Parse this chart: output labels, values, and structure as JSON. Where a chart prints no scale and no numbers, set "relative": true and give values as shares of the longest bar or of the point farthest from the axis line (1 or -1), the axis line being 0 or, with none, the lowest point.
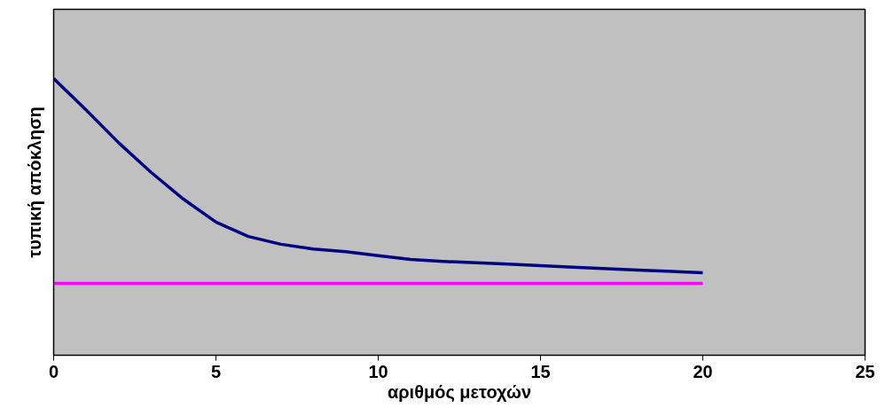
{
  "chart_data": {
    "type": "line",
    "xlabel": "αριθμός μετοχών",
    "ylabel": "τυπική απόκληση",
    "relative": true,
    "xlim": [
      0,
      25
    ],
    "xticks": [
      0,
      5,
      10,
      15,
      20,
      25
    ],
    "grid": false,
    "marker": "none",
    "line_style": "solid",
    "series": [
      {
        "color": "#000080",
        "x": [
          0,
          1,
          2,
          3,
          4,
          5,
          6,
          7,
          8,
          9,
          10,
          11,
          12,
          14,
          16,
          18,
          20
        ],
        "values": [
          1.0,
          0.886,
          0.768,
          0.661,
          0.564,
          0.481,
          0.429,
          0.401,
          0.384,
          0.374,
          0.36,
          0.346,
          0.339,
          0.329,
          0.318,
          0.308,
          0.298
        ]
      },
      {
        "color": "#ff00ff",
        "x": [
          0,
          20
        ],
        "values": [
          0.26,
          0.26
        ]
      }
    ]
  }
}
